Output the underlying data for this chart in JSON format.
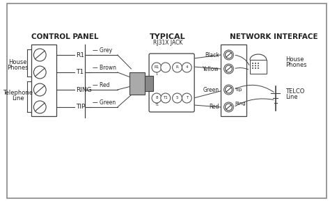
{
  "bg_color": "#ffffff",
  "line_color": "#404040",
  "text_color": "#222222",
  "control_panel_title": "CONTROL PANEL",
  "typical_title": "TYPICAL",
  "typical_subtitle": "RJ31X JACK",
  "network_title": "NETWORK INTERFACE",
  "cp_labels": [
    "R1",
    "T1",
    "RING",
    "TIP"
  ],
  "wire_labels": [
    "Grey",
    "Brown",
    "Red",
    "Green"
  ],
  "ni_colors": [
    "Black",
    "Yellow",
    "Green",
    "Red"
  ],
  "ni_tip_ring": [
    "Tip",
    "Ring"
  ],
  "jack_top_labels": [
    "R1",
    "1",
    "",
    "R",
    "4"
  ],
  "jack_bot_labels": [
    "8",
    "T1",
    "5",
    "T"
  ]
}
